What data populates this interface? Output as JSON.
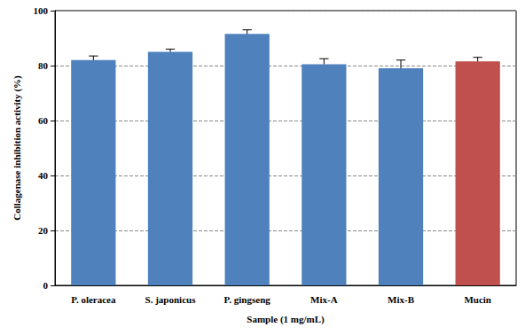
{
  "chart_data": {
    "type": "bar",
    "categories": [
      "P. oleracea",
      "S. japonicus",
      "P. gingseng",
      "Mix-A",
      "Mix-B",
      "Mucin"
    ],
    "values": [
      82,
      85,
      91.5,
      80.5,
      79,
      81.5
    ],
    "errors": [
      1.5,
      1,
      1.5,
      2,
      3,
      1.5
    ],
    "colors": [
      "#4f81bd",
      "#4f81bd",
      "#4f81bd",
      "#4f81bd",
      "#4f81bd",
      "#c0504d"
    ],
    "xlabel": "Sample (1 mg/mL)",
    "ylabel": "Collagenase inhibition activity (%)",
    "ylim": [
      0,
      100
    ],
    "yticks": [
      0,
      20,
      40,
      60,
      80,
      100
    ],
    "grid": true
  }
}
